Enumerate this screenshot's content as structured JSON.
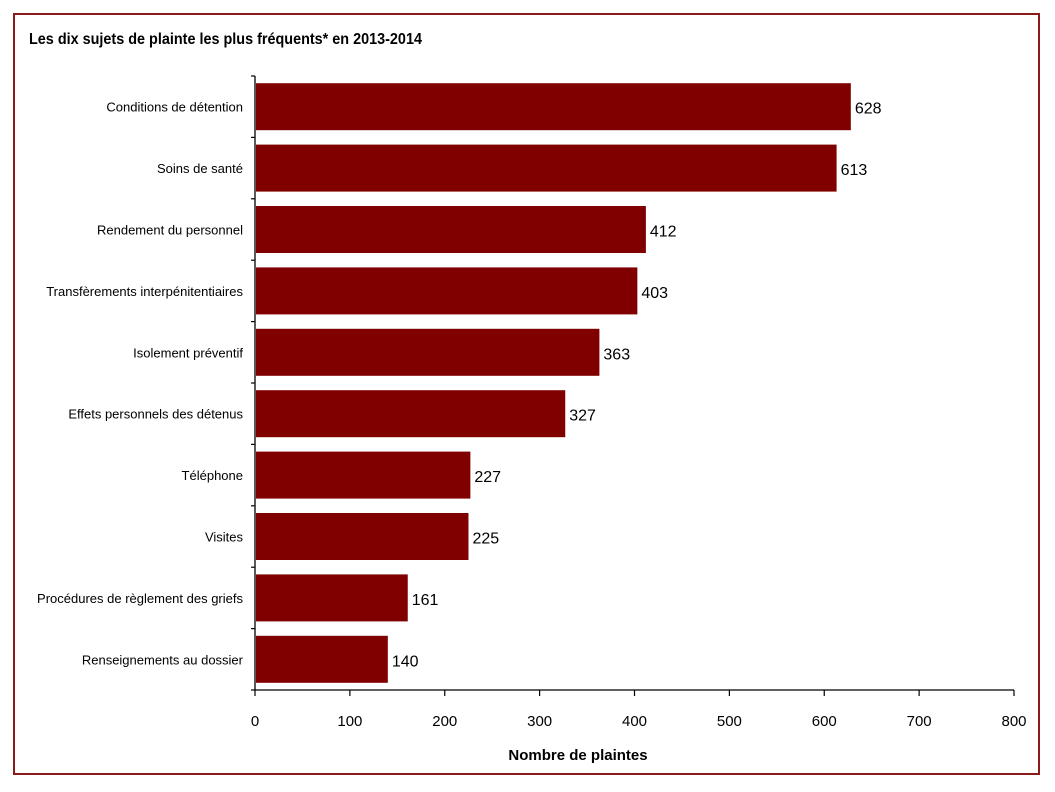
{
  "chart_data": {
    "type": "bar",
    "orientation": "horizontal",
    "title": "Les dix sujets de plainte les plus fréquents* en 2013-2014",
    "xlabel": "Nombre de plaintes",
    "ylabel": "",
    "categories": [
      "Conditions de détention",
      "Soins de santé",
      "Rendement du personnel",
      "Transfèrements interpénitentiaires",
      "Isolement préventif",
      "Effets personnels des détenus",
      "Téléphone",
      "Visites",
      "Procédures de règlement des griefs",
      "Renseignements au dossier"
    ],
    "values": [
      628,
      613,
      412,
      403,
      363,
      327,
      227,
      225,
      161,
      140
    ],
    "xlim": [
      0,
      800
    ],
    "xticks": [
      0,
      100,
      200,
      300,
      400,
      500,
      600,
      700,
      800
    ],
    "grid": false,
    "legend": "none",
    "bar_color": "#800000",
    "frame_color": "#8b1a1a"
  }
}
